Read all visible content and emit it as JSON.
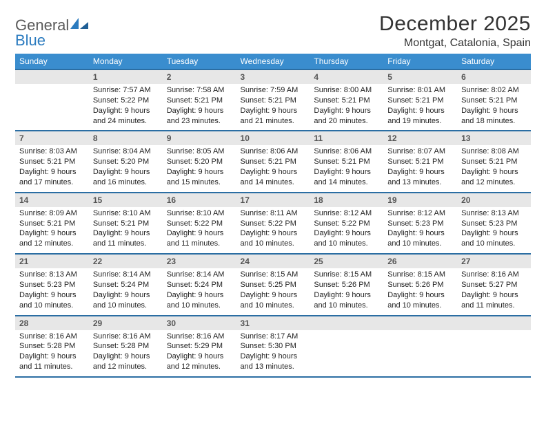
{
  "logo": {
    "word1": "General",
    "word2": "Blue"
  },
  "title": "December 2025",
  "location": "Montgat, Catalonia, Spain",
  "colors": {
    "header_bg": "#3a8dce",
    "header_border": "#2b6ea3",
    "daynum_bg": "#e7e7e7",
    "logo_gray": "#5a5a5a",
    "logo_blue": "#2b7bbf",
    "text": "#222222"
  },
  "weekdays": [
    "Sunday",
    "Monday",
    "Tuesday",
    "Wednesday",
    "Thursday",
    "Friday",
    "Saturday"
  ],
  "weeks": [
    [
      {
        "blank": true
      },
      {
        "day": "1",
        "sr": "Sunrise: 7:57 AM",
        "ss": "Sunset: 5:22 PM",
        "dl": "Daylight: 9 hours and 24 minutes."
      },
      {
        "day": "2",
        "sr": "Sunrise: 7:58 AM",
        "ss": "Sunset: 5:21 PM",
        "dl": "Daylight: 9 hours and 23 minutes."
      },
      {
        "day": "3",
        "sr": "Sunrise: 7:59 AM",
        "ss": "Sunset: 5:21 PM",
        "dl": "Daylight: 9 hours and 21 minutes."
      },
      {
        "day": "4",
        "sr": "Sunrise: 8:00 AM",
        "ss": "Sunset: 5:21 PM",
        "dl": "Daylight: 9 hours and 20 minutes."
      },
      {
        "day": "5",
        "sr": "Sunrise: 8:01 AM",
        "ss": "Sunset: 5:21 PM",
        "dl": "Daylight: 9 hours and 19 minutes."
      },
      {
        "day": "6",
        "sr": "Sunrise: 8:02 AM",
        "ss": "Sunset: 5:21 PM",
        "dl": "Daylight: 9 hours and 18 minutes."
      }
    ],
    [
      {
        "day": "7",
        "sr": "Sunrise: 8:03 AM",
        "ss": "Sunset: 5:21 PM",
        "dl": "Daylight: 9 hours and 17 minutes."
      },
      {
        "day": "8",
        "sr": "Sunrise: 8:04 AM",
        "ss": "Sunset: 5:20 PM",
        "dl": "Daylight: 9 hours and 16 minutes."
      },
      {
        "day": "9",
        "sr": "Sunrise: 8:05 AM",
        "ss": "Sunset: 5:20 PM",
        "dl": "Daylight: 9 hours and 15 minutes."
      },
      {
        "day": "10",
        "sr": "Sunrise: 8:06 AM",
        "ss": "Sunset: 5:21 PM",
        "dl": "Daylight: 9 hours and 14 minutes."
      },
      {
        "day": "11",
        "sr": "Sunrise: 8:06 AM",
        "ss": "Sunset: 5:21 PM",
        "dl": "Daylight: 9 hours and 14 minutes."
      },
      {
        "day": "12",
        "sr": "Sunrise: 8:07 AM",
        "ss": "Sunset: 5:21 PM",
        "dl": "Daylight: 9 hours and 13 minutes."
      },
      {
        "day": "13",
        "sr": "Sunrise: 8:08 AM",
        "ss": "Sunset: 5:21 PM",
        "dl": "Daylight: 9 hours and 12 minutes."
      }
    ],
    [
      {
        "day": "14",
        "sr": "Sunrise: 8:09 AM",
        "ss": "Sunset: 5:21 PM",
        "dl": "Daylight: 9 hours and 12 minutes."
      },
      {
        "day": "15",
        "sr": "Sunrise: 8:10 AM",
        "ss": "Sunset: 5:21 PM",
        "dl": "Daylight: 9 hours and 11 minutes."
      },
      {
        "day": "16",
        "sr": "Sunrise: 8:10 AM",
        "ss": "Sunset: 5:22 PM",
        "dl": "Daylight: 9 hours and 11 minutes."
      },
      {
        "day": "17",
        "sr": "Sunrise: 8:11 AM",
        "ss": "Sunset: 5:22 PM",
        "dl": "Daylight: 9 hours and 10 minutes."
      },
      {
        "day": "18",
        "sr": "Sunrise: 8:12 AM",
        "ss": "Sunset: 5:22 PM",
        "dl": "Daylight: 9 hours and 10 minutes."
      },
      {
        "day": "19",
        "sr": "Sunrise: 8:12 AM",
        "ss": "Sunset: 5:23 PM",
        "dl": "Daylight: 9 hours and 10 minutes."
      },
      {
        "day": "20",
        "sr": "Sunrise: 8:13 AM",
        "ss": "Sunset: 5:23 PM",
        "dl": "Daylight: 9 hours and 10 minutes."
      }
    ],
    [
      {
        "day": "21",
        "sr": "Sunrise: 8:13 AM",
        "ss": "Sunset: 5:23 PM",
        "dl": "Daylight: 9 hours and 10 minutes."
      },
      {
        "day": "22",
        "sr": "Sunrise: 8:14 AM",
        "ss": "Sunset: 5:24 PM",
        "dl": "Daylight: 9 hours and 10 minutes."
      },
      {
        "day": "23",
        "sr": "Sunrise: 8:14 AM",
        "ss": "Sunset: 5:24 PM",
        "dl": "Daylight: 9 hours and 10 minutes."
      },
      {
        "day": "24",
        "sr": "Sunrise: 8:15 AM",
        "ss": "Sunset: 5:25 PM",
        "dl": "Daylight: 9 hours and 10 minutes."
      },
      {
        "day": "25",
        "sr": "Sunrise: 8:15 AM",
        "ss": "Sunset: 5:26 PM",
        "dl": "Daylight: 9 hours and 10 minutes."
      },
      {
        "day": "26",
        "sr": "Sunrise: 8:15 AM",
        "ss": "Sunset: 5:26 PM",
        "dl": "Daylight: 9 hours and 10 minutes."
      },
      {
        "day": "27",
        "sr": "Sunrise: 8:16 AM",
        "ss": "Sunset: 5:27 PM",
        "dl": "Daylight: 9 hours and 11 minutes."
      }
    ],
    [
      {
        "day": "28",
        "sr": "Sunrise: 8:16 AM",
        "ss": "Sunset: 5:28 PM",
        "dl": "Daylight: 9 hours and 11 minutes."
      },
      {
        "day": "29",
        "sr": "Sunrise: 8:16 AM",
        "ss": "Sunset: 5:28 PM",
        "dl": "Daylight: 9 hours and 12 minutes."
      },
      {
        "day": "30",
        "sr": "Sunrise: 8:16 AM",
        "ss": "Sunset: 5:29 PM",
        "dl": "Daylight: 9 hours and 12 minutes."
      },
      {
        "day": "31",
        "sr": "Sunrise: 8:17 AM",
        "ss": "Sunset: 5:30 PM",
        "dl": "Daylight: 9 hours and 13 minutes."
      },
      {
        "blank": true
      },
      {
        "blank": true
      },
      {
        "blank": true
      }
    ]
  ]
}
